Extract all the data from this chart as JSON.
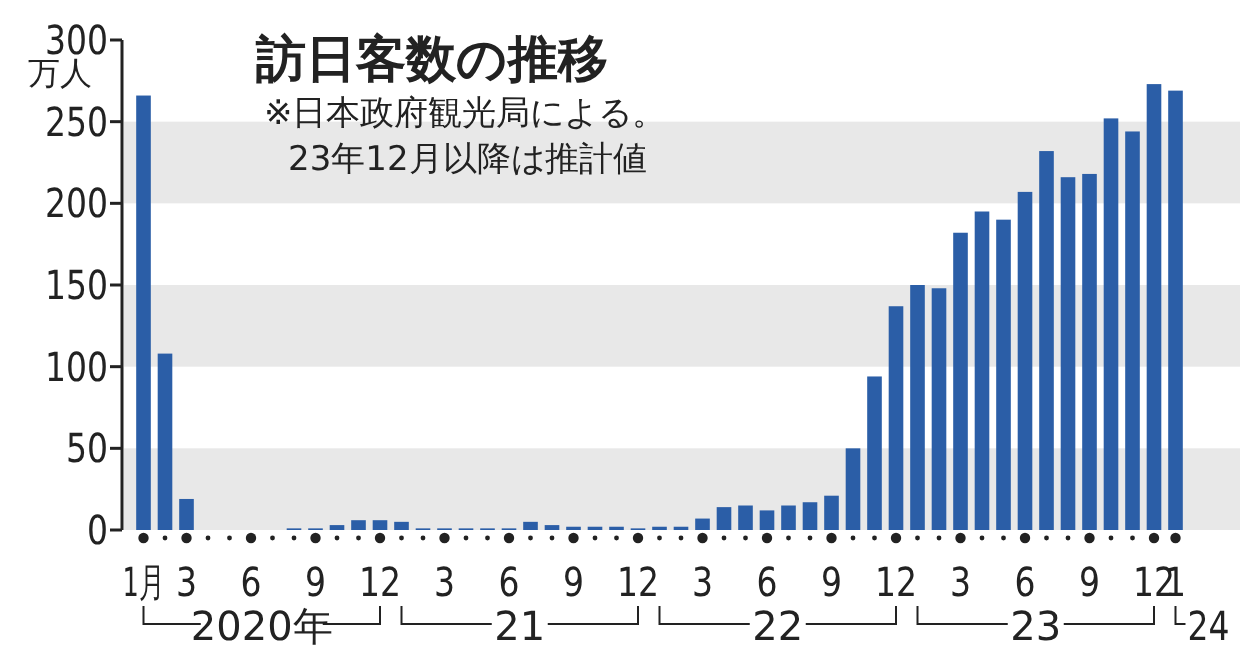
{
  "chart_data": {
    "type": "bar",
    "title": "訪日客数の推移",
    "subtitle": "※日本政府観光局による。\n23年12月以降は推計値",
    "ylabel": "万人",
    "categories": [
      "1月",
      null,
      "3",
      null,
      null,
      "6",
      null,
      null,
      "9",
      null,
      null,
      "12",
      null,
      null,
      "3",
      null,
      null,
      "6",
      null,
      null,
      "9",
      null,
      null,
      "12",
      null,
      null,
      "3",
      null,
      null,
      "6",
      null,
      null,
      "9",
      null,
      null,
      "12",
      null,
      null,
      "3",
      null,
      null,
      "6",
      null,
      null,
      "9",
      null,
      null,
      "12",
      "1"
    ],
    "values": [
      266,
      108,
      19,
      0,
      0,
      0,
      0,
      1,
      1,
      3,
      6,
      6,
      5,
      1,
      1,
      1,
      1,
      1,
      5,
      3,
      2,
      2,
      2,
      1,
      2,
      2,
      7,
      14,
      15,
      12,
      15,
      17,
      21,
      50,
      94,
      137,
      150,
      148,
      182,
      195,
      190,
      207,
      232,
      216,
      218,
      252,
      244,
      273,
      269
    ],
    "color": "#2b5ea7",
    "ylim": [
      0,
      300
    ],
    "yticks": [
      0,
      50,
      100,
      150,
      200,
      250,
      300
    ],
    "bands": [
      {
        "axis": "y",
        "from": 0,
        "to": 50,
        "color": "#e8e8e8"
      },
      {
        "axis": "y",
        "from": 100,
        "to": 150,
        "color": "#e8e8e8"
      },
      {
        "axis": "y",
        "from": 200,
        "to": 250,
        "color": "#e8e8e8"
      }
    ],
    "annotations": [
      "2020年",
      "21",
      "22",
      "23",
      "24"
    ],
    "grid": false
  }
}
